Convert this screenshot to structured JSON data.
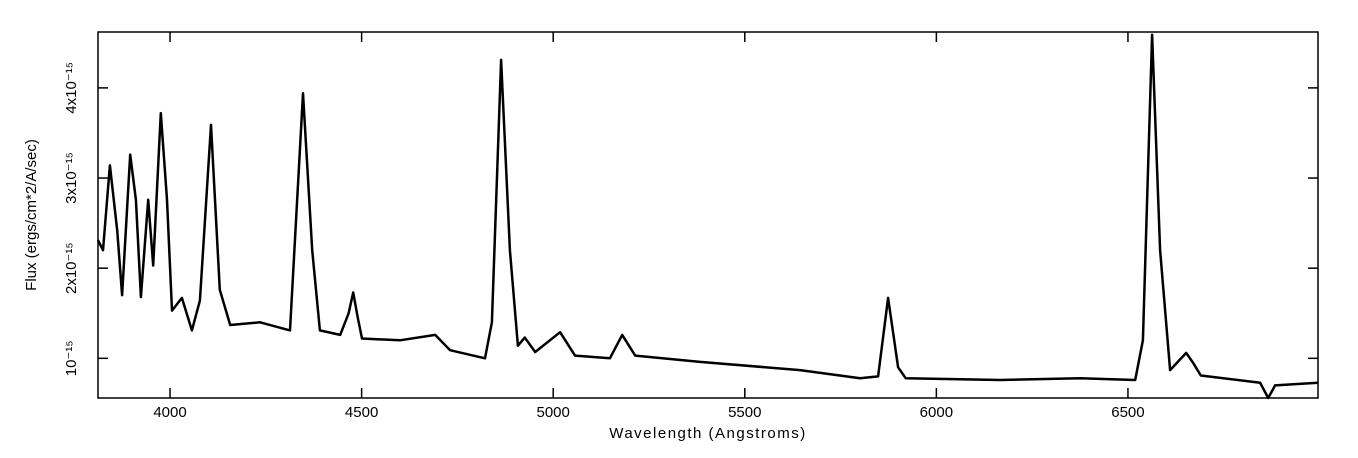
{
  "chart_data": {
    "type": "line",
    "x_label": "Wavelength (Angstroms)",
    "y_label": "Flux (ergs/cm*2/A/sec)",
    "x": [
      3812,
      3825,
      3843,
      3862,
      3875,
      3896,
      3911,
      3924,
      3943,
      3956,
      3976,
      3992,
      4005,
      4031,
      4057,
      4078,
      4107,
      4130,
      4157,
      4235,
      4313,
      4347,
      4371,
      4391,
      4444,
      4466,
      4478,
      4490,
      4501,
      4600,
      4692,
      4731,
      4822,
      4840,
      4864,
      4887,
      4908,
      4926,
      4953,
      5018,
      5057,
      5148,
      5180,
      5214,
      5383,
      5644,
      5801,
      5848,
      5874,
      5900,
      5920,
      6166,
      6375,
      6519,
      6539,
      6563,
      6584,
      6610,
      6652,
      6670,
      6690,
      6845,
      6866,
      6884,
      6996
    ],
    "series": [
      {
        "color": "#000000",
        "values": [
          2.31e-15,
          2.2e-15,
          3.14e-15,
          2.42e-15,
          1.7e-15,
          3.26e-15,
          2.76e-15,
          1.68e-15,
          2.76e-15,
          2.03e-15,
          3.72e-15,
          2.76e-15,
          1.53e-15,
          1.67e-15,
          1.31e-15,
          1.64e-15,
          3.59e-15,
          1.76e-15,
          1.37e-15,
          1.4e-15,
          1.31e-15,
          3.94e-15,
          2.2e-15,
          1.31e-15,
          1.26e-15,
          1.5e-15,
          1.73e-15,
          1.45e-15,
          1.22e-15,
          1.2e-15,
          1.26e-15,
          1.09e-15,
          1e-15,
          1.4e-15,
          4.31e-15,
          2.2e-15,
          1.14e-15,
          1.23e-15,
          1.07e-15,
          1.29e-15,
          1.03e-15,
          1e-15,
          1.26e-15,
          1.03e-15,
          9.6e-16,
          8.7e-16,
          7.8e-16,
          8e-16,
          1.67e-15,
          9e-16,
          7.8e-16,
          7.6e-16,
          7.8e-16,
          7.6e-16,
          1.2e-15,
          4.59e-15,
          2.2e-15,
          8.7e-16,
          1.06e-15,
          9.5e-16,
          8.1e-16,
          7.3e-16,
          5.6e-16,
          7e-16,
          7.3e-16
        ]
      }
    ],
    "xlim": [
      3812,
      6996
    ],
    "ylim": [
      5.6e-16,
      4.62e-15
    ],
    "xticks": [
      4000,
      4500,
      5000,
      5500,
      6000,
      6500
    ],
    "yticks": [
      {
        "value": 1e-15,
        "label": "10⁻¹⁵"
      },
      {
        "value": 2e-15,
        "label": "2x10⁻¹⁵"
      },
      {
        "value": 3e-15,
        "label": "3x10⁻¹⁵"
      },
      {
        "value": 4e-15,
        "label": "4x10⁻¹⁵"
      }
    ]
  }
}
